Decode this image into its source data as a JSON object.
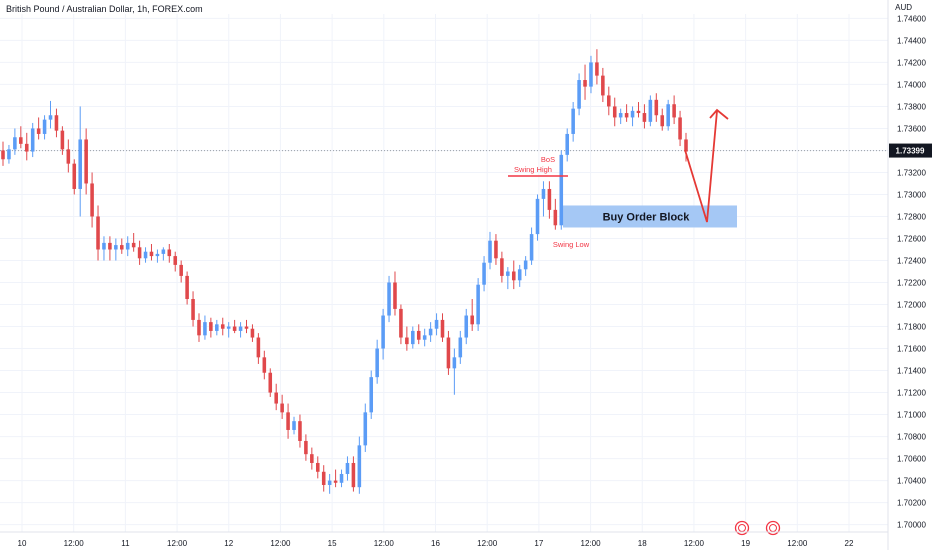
{
  "header": {
    "title": "British Pound / Australian Dollar, 1h, FOREX.com",
    "currency": "AUD"
  },
  "chart_data": {
    "type": "candlestick",
    "title": "British Pound / Australian Dollar, 1h, FOREX.com",
    "currency": "AUD",
    "y_ticks": [
      "1.74600",
      "1.74400",
      "1.74200",
      "1.74000",
      "1.73800",
      "1.73600",
      "1.73400",
      "1.73200",
      "1.73000",
      "1.72800",
      "1.72600",
      "1.72400",
      "1.72200",
      "1.72000",
      "1.71800",
      "1.71600",
      "1.71400",
      "1.71200",
      "1.71000",
      "1.70800",
      "1.70600",
      "1.70400",
      "1.70200",
      "1.70000"
    ],
    "ylim": [
      1.6996,
      1.7474
    ],
    "x_ticks": [
      "10",
      "12:00",
      "11",
      "12:00",
      "12",
      "12:00",
      "15",
      "12:00",
      "16",
      "12:00",
      "17",
      "12:00",
      "18",
      "12:00",
      "19",
      "12:00",
      "22"
    ],
    "current_price": "1.73399",
    "colors": {
      "up": "#5b9cf6",
      "down": "#e0484b",
      "marker": "#f23645"
    },
    "grid": true,
    "annotations": {
      "bos": "BoS",
      "swing_high": "Swing High",
      "swing_low": "Swing Low",
      "order_block": "Buy Order Block"
    },
    "order_block_range": [
      1.727,
      1.729
    ],
    "candles": [
      [
        1.734,
        1.7348,
        1.7326,
        1.7332
      ],
      [
        1.7332,
        1.7345,
        1.7328,
        1.7341
      ],
      [
        1.7341,
        1.736,
        1.7336,
        1.7352
      ],
      [
        1.7352,
        1.7362,
        1.7342,
        1.7346
      ],
      [
        1.7346,
        1.7356,
        1.7331,
        1.7339
      ],
      [
        1.7339,
        1.7365,
        1.7334,
        1.736
      ],
      [
        1.736,
        1.737,
        1.735,
        1.7355
      ],
      [
        1.7355,
        1.7372,
        1.735,
        1.7368
      ],
      [
        1.7368,
        1.7385,
        1.736,
        1.7372
      ],
      [
        1.7372,
        1.7378,
        1.7352,
        1.7358
      ],
      [
        1.7358,
        1.7362,
        1.7336,
        1.7341
      ],
      [
        1.7341,
        1.735,
        1.732,
        1.7328
      ],
      [
        1.7328,
        1.7332,
        1.73,
        1.7305
      ],
      [
        1.7305,
        1.738,
        1.728,
        1.735
      ],
      [
        1.735,
        1.736,
        1.73,
        1.731
      ],
      [
        1.731,
        1.732,
        1.727,
        1.728
      ],
      [
        1.728,
        1.729,
        1.724,
        1.725
      ],
      [
        1.725,
        1.7262,
        1.724,
        1.7256
      ],
      [
        1.7256,
        1.7262,
        1.724,
        1.725
      ],
      [
        1.725,
        1.726,
        1.724,
        1.7254
      ],
      [
        1.7254,
        1.726,
        1.7246,
        1.725
      ],
      [
        1.725,
        1.7262,
        1.7244,
        1.7256
      ],
      [
        1.7256,
        1.7265,
        1.7248,
        1.7252
      ],
      [
        1.7252,
        1.7258,
        1.7236,
        1.7242
      ],
      [
        1.7242,
        1.7252,
        1.7238,
        1.7248
      ],
      [
        1.7248,
        1.7255,
        1.724,
        1.7244
      ],
      [
        1.7244,
        1.725,
        1.7238,
        1.7246
      ],
      [
        1.7246,
        1.7252,
        1.724,
        1.725
      ],
      [
        1.725,
        1.7255,
        1.7238,
        1.7244
      ],
      [
        1.7244,
        1.7248,
        1.723,
        1.7236
      ],
      [
        1.7236,
        1.724,
        1.722,
        1.7226
      ],
      [
        1.7226,
        1.723,
        1.72,
        1.7205
      ],
      [
        1.7205,
        1.7212,
        1.718,
        1.7186
      ],
      [
        1.7186,
        1.7192,
        1.7166,
        1.7172
      ],
      [
        1.7172,
        1.719,
        1.7168,
        1.7184
      ],
      [
        1.7184,
        1.7188,
        1.717,
        1.7176
      ],
      [
        1.7176,
        1.7186,
        1.7172,
        1.7182
      ],
      [
        1.7182,
        1.7188,
        1.7172,
        1.7178
      ],
      [
        1.7178,
        1.7184,
        1.717,
        1.718
      ],
      [
        1.718,
        1.7186,
        1.7174,
        1.7176
      ],
      [
        1.7176,
        1.7184,
        1.717,
        1.718
      ],
      [
        1.718,
        1.7186,
        1.7174,
        1.7178
      ],
      [
        1.7178,
        1.7182,
        1.7166,
        1.717
      ],
      [
        1.717,
        1.7174,
        1.7146,
        1.7152
      ],
      [
        1.7152,
        1.7158,
        1.7132,
        1.7138
      ],
      [
        1.7138,
        1.7142,
        1.7116,
        1.712
      ],
      [
        1.712,
        1.7128,
        1.7104,
        1.711
      ],
      [
        1.711,
        1.7118,
        1.7096,
        1.7102
      ],
      [
        1.7102,
        1.711,
        1.7078,
        1.7086
      ],
      [
        1.7086,
        1.7098,
        1.7082,
        1.7094
      ],
      [
        1.7094,
        1.71,
        1.707,
        1.7076
      ],
      [
        1.7076,
        1.7082,
        1.7058,
        1.7064
      ],
      [
        1.7064,
        1.707,
        1.705,
        1.7056
      ],
      [
        1.7056,
        1.7062,
        1.7042,
        1.7048
      ],
      [
        1.7048,
        1.7054,
        1.703,
        1.7036
      ],
      [
        1.7036,
        1.7046,
        1.7028,
        1.704
      ],
      [
        1.704,
        1.705,
        1.7034,
        1.7038
      ],
      [
        1.7038,
        1.705,
        1.7034,
        1.7046
      ],
      [
        1.7046,
        1.7062,
        1.704,
        1.7056
      ],
      [
        1.7056,
        1.7062,
        1.703,
        1.7034
      ],
      [
        1.7034,
        1.708,
        1.7028,
        1.7072
      ],
      [
        1.7072,
        1.711,
        1.7066,
        1.7102
      ],
      [
        1.7102,
        1.714,
        1.7096,
        1.7134
      ],
      [
        1.7134,
        1.7168,
        1.7128,
        1.716
      ],
      [
        1.716,
        1.7196,
        1.715,
        1.719
      ],
      [
        1.719,
        1.7226,
        1.7184,
        1.722
      ],
      [
        1.722,
        1.723,
        1.719,
        1.7196
      ],
      [
        1.7196,
        1.72,
        1.7164,
        1.717
      ],
      [
        1.717,
        1.718,
        1.7158,
        1.7164
      ],
      [
        1.7164,
        1.718,
        1.716,
        1.7176
      ],
      [
        1.7176,
        1.7182,
        1.7164,
        1.7168
      ],
      [
        1.7168,
        1.7178,
        1.7162,
        1.7172
      ],
      [
        1.7172,
        1.7184,
        1.7166,
        1.7178
      ],
      [
        1.7178,
        1.7192,
        1.7172,
        1.7186
      ],
      [
        1.7186,
        1.7192,
        1.7166,
        1.717
      ],
      [
        1.717,
        1.7176,
        1.7136,
        1.7142
      ],
      [
        1.7142,
        1.716,
        1.7118,
        1.7152
      ],
      [
        1.7152,
        1.7176,
        1.7146,
        1.717
      ],
      [
        1.717,
        1.7196,
        1.7164,
        1.719
      ],
      [
        1.719,
        1.7205,
        1.7176,
        1.7182
      ],
      [
        1.7182,
        1.7224,
        1.7176,
        1.7218
      ],
      [
        1.7218,
        1.7244,
        1.7212,
        1.7238
      ],
      [
        1.7238,
        1.7266,
        1.7232,
        1.7258
      ],
      [
        1.7258,
        1.7264,
        1.7236,
        1.7242
      ],
      [
        1.7242,
        1.7248,
        1.722,
        1.7226
      ],
      [
        1.7226,
        1.7234,
        1.7214,
        1.723
      ],
      [
        1.723,
        1.724,
        1.7214,
        1.7222
      ],
      [
        1.7222,
        1.7236,
        1.7216,
        1.7232
      ],
      [
        1.7232,
        1.7244,
        1.7226,
        1.724
      ],
      [
        1.724,
        1.727,
        1.7236,
        1.7264
      ],
      [
        1.7264,
        1.73,
        1.7258,
        1.7296
      ],
      [
        1.7296,
        1.7312,
        1.728,
        1.7305
      ],
      [
        1.7305,
        1.7312,
        1.7278,
        1.7286
      ],
      [
        1.7286,
        1.7296,
        1.7268,
        1.7272
      ],
      [
        1.7272,
        1.734,
        1.7268,
        1.7336
      ],
      [
        1.7336,
        1.736,
        1.733,
        1.7355
      ],
      [
        1.7355,
        1.7384,
        1.7348,
        1.7378
      ],
      [
        1.7378,
        1.741,
        1.7372,
        1.7404
      ],
      [
        1.7404,
        1.7418,
        1.7386,
        1.7398
      ],
      [
        1.7398,
        1.7426,
        1.7392,
        1.742
      ],
      [
        1.742,
        1.7432,
        1.74,
        1.7408
      ],
      [
        1.7408,
        1.7415,
        1.7384,
        1.739
      ],
      [
        1.739,
        1.7398,
        1.7372,
        1.738
      ],
      [
        1.738,
        1.7388,
        1.7362,
        1.737
      ],
      [
        1.737,
        1.7378,
        1.7364,
        1.7374
      ],
      [
        1.7374,
        1.7382,
        1.7366,
        1.737
      ],
      [
        1.737,
        1.738,
        1.7362,
        1.7376
      ],
      [
        1.7376,
        1.7384,
        1.737,
        1.7374
      ],
      [
        1.7374,
        1.7382,
        1.736,
        1.7366
      ],
      [
        1.7366,
        1.739,
        1.7362,
        1.7386
      ],
      [
        1.7386,
        1.7392,
        1.7366,
        1.7372
      ],
      [
        1.7372,
        1.7378,
        1.7358,
        1.7362
      ],
      [
        1.7362,
        1.7386,
        1.7358,
        1.7382
      ],
      [
        1.7382,
        1.739,
        1.7364,
        1.737
      ],
      [
        1.737,
        1.7376,
        1.7344,
        1.735
      ],
      [
        1.735,
        1.7356,
        1.733,
        1.7339
      ]
    ]
  }
}
